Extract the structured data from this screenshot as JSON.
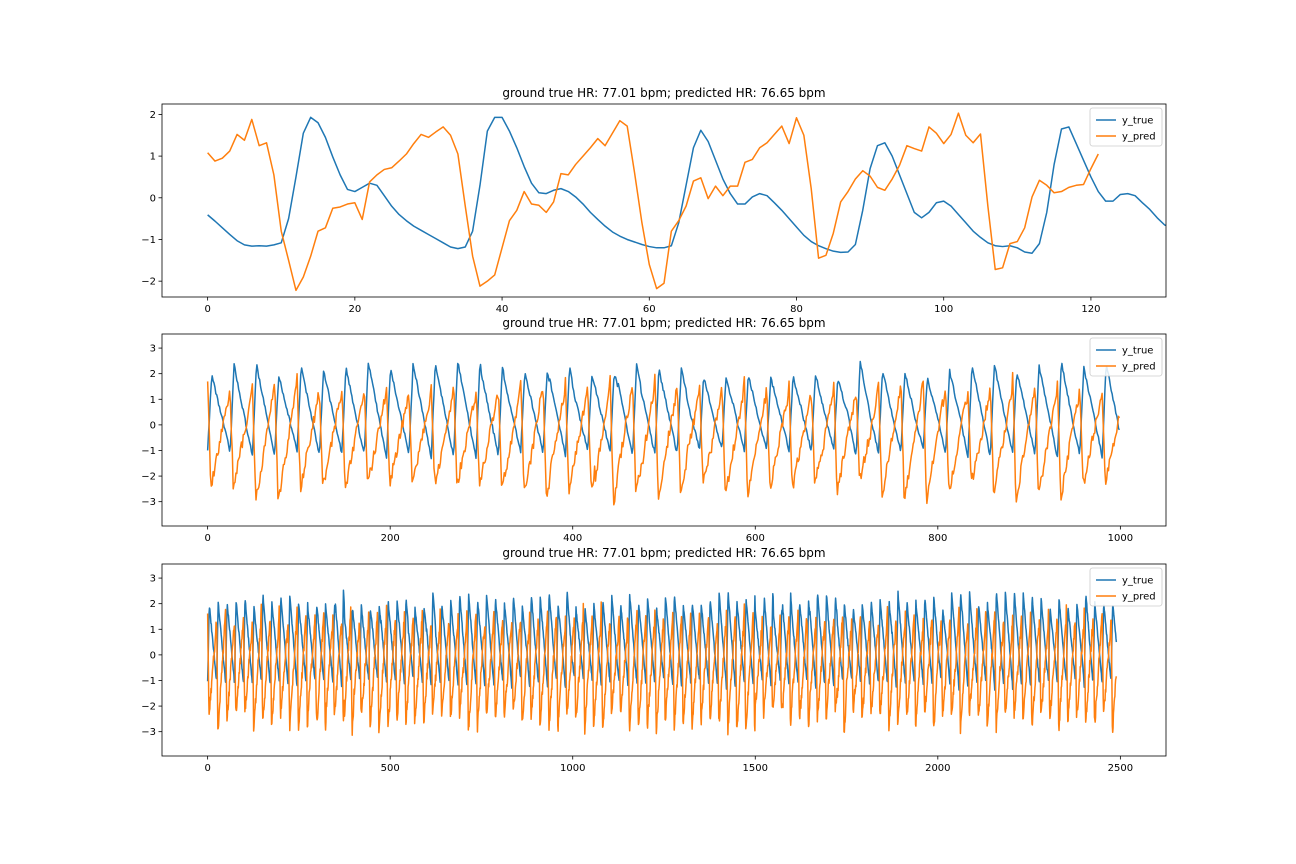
{
  "colors": {
    "y_true": "#1f77b4",
    "y_pred": "#ff7f0e",
    "frame": "#000000",
    "legend_border": "#cccccc"
  },
  "chart_data": [
    {
      "type": "line",
      "title": "ground true HR: 77.01 bpm;  predicted HR: 76.65 bpm",
      "xlabel": "",
      "ylabel": "",
      "xlim": [
        -6.2,
        130.2
      ],
      "ylim": [
        -2.38,
        2.25
      ],
      "xticks": [
        0,
        20,
        40,
        60,
        80,
        100,
        120
      ],
      "yticks": [
        -2,
        -1,
        0,
        1,
        2
      ],
      "grid": false,
      "legend_position": "top-right",
      "series": [
        {
          "name": "y_true",
          "x_start": 0,
          "x_step": 1,
          "values": [
            -0.41,
            -0.56,
            -0.72,
            -0.88,
            -1.03,
            -1.13,
            -1.16,
            -1.15,
            -1.16,
            -1.13,
            -1.08,
            -0.5,
            0.5,
            1.55,
            1.93,
            1.8,
            1.45,
            0.98,
            0.55,
            0.2,
            0.15,
            0.25,
            0.35,
            0.3,
            0.05,
            -0.2,
            -0.4,
            -0.55,
            -0.68,
            -0.78,
            -0.88,
            -0.98,
            -1.08,
            -1.18,
            -1.22,
            -1.18,
            -0.8,
            0.3,
            1.6,
            1.93,
            1.93,
            1.6,
            1.2,
            0.75,
            0.35,
            0.12,
            0.1,
            0.18,
            0.22,
            0.15,
            0.02,
            -0.15,
            -0.35,
            -0.52,
            -0.68,
            -0.82,
            -0.92,
            -1.0,
            -1.06,
            -1.12,
            -1.17,
            -1.2,
            -1.2,
            -1.15,
            -0.6,
            0.3,
            1.2,
            1.62,
            1.35,
            0.9,
            0.45,
            0.1,
            -0.15,
            -0.15,
            0.02,
            0.1,
            0.05,
            -0.12,
            -0.3,
            -0.5,
            -0.7,
            -0.9,
            -1.05,
            -1.15,
            -1.22,
            -1.28,
            -1.31,
            -1.3,
            -1.12,
            -0.3,
            0.7,
            1.25,
            1.32,
            1.0,
            0.55,
            0.1,
            -0.35,
            -0.48,
            -0.35,
            -0.12,
            -0.08,
            -0.2,
            -0.4,
            -0.6,
            -0.8,
            -0.95,
            -1.08,
            -1.15,
            -1.17,
            -1.15,
            -1.2,
            -1.3,
            -1.33,
            -1.1,
            -0.35,
            0.8,
            1.65,
            1.7,
            1.3,
            0.9,
            0.5,
            0.15,
            -0.08,
            -0.08,
            0.08,
            0.1,
            0.05,
            -0.12,
            -0.28,
            -0.48,
            -0.65,
            -0.72
          ]
        },
        {
          "name": "y_pred",
          "x_start": 0,
          "x_step": 1,
          "values": [
            1.08,
            0.88,
            0.95,
            1.12,
            1.52,
            1.38,
            1.88,
            1.25,
            1.32,
            0.55,
            -0.8,
            -1.5,
            -2.22,
            -1.9,
            -1.4,
            -0.8,
            -0.72,
            -0.25,
            -0.22,
            -0.15,
            -0.12,
            -0.52,
            0.38,
            0.55,
            0.68,
            0.72,
            0.88,
            1.05,
            1.3,
            1.52,
            1.45,
            1.58,
            1.7,
            1.5,
            1.05,
            -0.2,
            -1.4,
            -2.12,
            -2.0,
            -1.85,
            -1.2,
            -0.55,
            -0.3,
            0.15,
            -0.15,
            -0.18,
            -0.35,
            -0.1,
            0.58,
            0.55,
            0.8,
            1.0,
            1.2,
            1.42,
            1.25,
            1.55,
            1.85,
            1.72,
            0.6,
            -0.6,
            -1.6,
            -2.18,
            -2.05,
            -0.8,
            -0.55,
            -0.2,
            0.4,
            0.48,
            -0.02,
            0.28,
            0.05,
            0.28,
            0.28,
            0.85,
            0.92,
            1.2,
            1.32,
            1.52,
            1.72,
            1.3,
            1.92,
            1.5,
            0.22,
            -1.45,
            -1.38,
            -0.85,
            -0.1,
            0.15,
            0.45,
            0.65,
            0.52,
            0.25,
            0.18,
            0.45,
            0.78,
            1.25,
            1.18,
            1.12,
            1.7,
            1.55,
            1.3,
            1.52,
            2.03,
            1.5,
            1.32,
            1.53,
            -0.2,
            -1.72,
            -1.68,
            -1.1,
            -1.05,
            -0.72,
            0.02,
            0.42,
            0.3,
            0.12,
            0.15,
            0.25,
            0.3,
            0.32,
            0.7,
            1.05
          ]
        }
      ]
    },
    {
      "type": "line",
      "title": "ground true HR: 77.01 bpm;  predicted HR: 76.65 bpm",
      "xlabel": "",
      "ylabel": "",
      "xlim": [
        -50,
        1050
      ],
      "ylim": [
        -3.95,
        3.55
      ],
      "xticks": [
        0,
        200,
        400,
        600,
        800,
        1000
      ],
      "yticks": [
        -3,
        -2,
        -1,
        0,
        1,
        2,
        3
      ],
      "grid": false,
      "legend_position": "top-right",
      "series": [
        {
          "name": "y_true",
          "x_start": 0,
          "x_step": 1,
          "n": 1000,
          "approx_period": 24.5,
          "range": [
            -1.85,
            3.25
          ]
        },
        {
          "name": "y_pred",
          "x_start": 0,
          "x_step": 1,
          "n": 1000,
          "approx_period": 24.5,
          "range": [
            -3.55,
            2.3
          ]
        }
      ]
    },
    {
      "type": "line",
      "title": "ground true HR: 77.01 bpm;  predicted HR: 76.65 bpm",
      "xlabel": "",
      "ylabel": "",
      "xlim": [
        -125,
        2625
      ],
      "ylim": [
        -3.95,
        3.55
      ],
      "xticks": [
        0,
        500,
        1000,
        1500,
        2000,
        2500
      ],
      "yticks": [
        -3,
        -2,
        -1,
        0,
        1,
        2,
        3
      ],
      "grid": false,
      "legend_position": "top-right",
      "series": [
        {
          "name": "y_true",
          "x_start": 0,
          "x_step": 1,
          "n": 2490,
          "approx_period": 24.5,
          "range": [
            -1.85,
            3.25
          ]
        },
        {
          "name": "y_pred",
          "x_start": 0,
          "x_step": 1,
          "n": 2490,
          "approx_period": 24.5,
          "range": [
            -3.55,
            2.3
          ]
        }
      ]
    }
  ]
}
